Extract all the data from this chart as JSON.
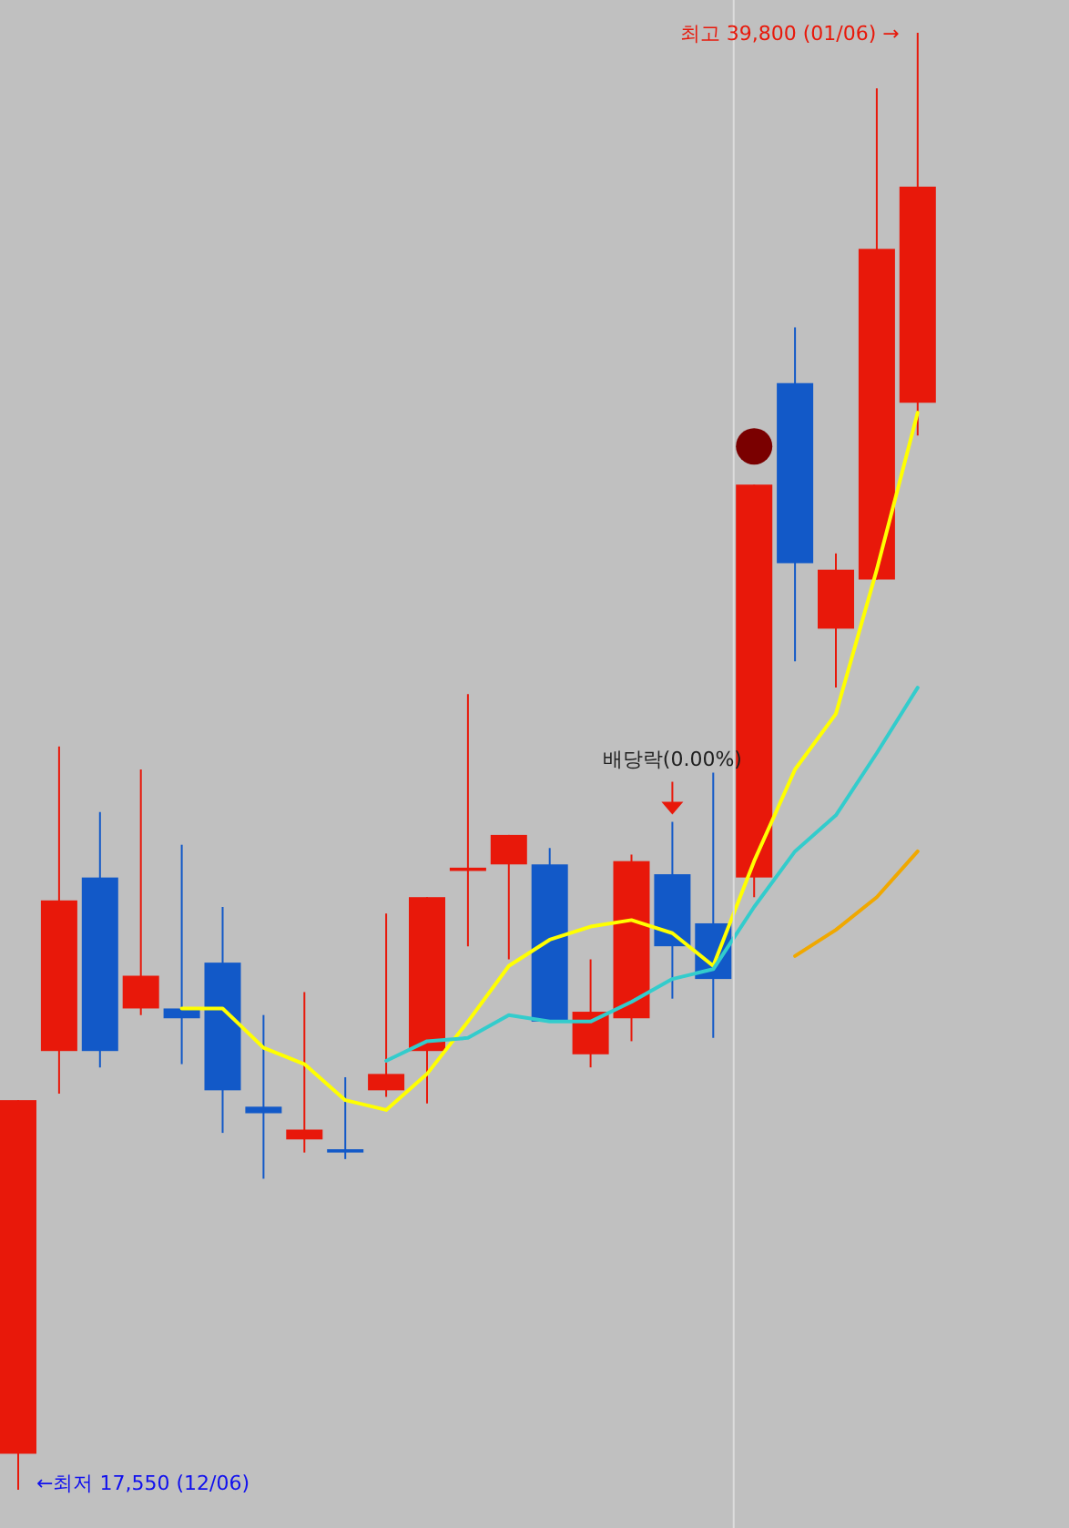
{
  "chart_data": {
    "type": "candlestick",
    "categories": [
      null,
      null,
      null,
      null,
      null,
      null,
      null,
      null,
      null,
      null,
      null,
      null,
      null,
      null,
      null,
      null,
      null,
      null,
      null,
      null,
      null,
      null,
      null
    ],
    "series": [
      {
        "colors": [
          "#e8180a",
          "#e8180a",
          "#1259c8",
          "#e8180a",
          "#1259c8",
          "#1259c8",
          "#1259c8",
          "#e8180a",
          "#1259c8",
          "#e8180a",
          "#e8180a",
          "#e8180a",
          "#e8180a",
          "#1259c8",
          "#e8180a",
          "#e8180a",
          "#1259c8",
          "#1259c8",
          "#e8180a",
          "#1259c8",
          "#e8180a",
          "#e8180a",
          "#e8180a"
        ],
        "ohlc": [
          [
            18100,
            23500,
            17550,
            23500
          ],
          [
            24250,
            28900,
            23600,
            26550
          ],
          [
            26900,
            27900,
            24000,
            24250
          ],
          [
            24900,
            28550,
            24800,
            25400
          ],
          [
            24900,
            27400,
            24050,
            24750
          ],
          [
            25600,
            26450,
            23000,
            23650
          ],
          [
            23400,
            24800,
            22300,
            23300
          ],
          [
            22900,
            25150,
            22700,
            23050
          ],
          [
            22750,
            23850,
            22600,
            22700
          ],
          [
            23650,
            26350,
            23550,
            23900
          ],
          [
            24250,
            26600,
            23450,
            26600
          ],
          [
            27000,
            29700,
            25850,
            27050
          ],
          [
            27100,
            27550,
            25650,
            27550
          ],
          [
            27100,
            27350,
            24700,
            24700
          ],
          [
            24200,
            25650,
            24000,
            24850
          ],
          [
            24750,
            27250,
            24400,
            27150
          ],
          [
            26950,
            27750,
            25050,
            25850
          ],
          [
            26200,
            28500,
            24450,
            25350
          ],
          [
            26900,
            32900,
            26600,
            32900
          ],
          [
            34450,
            35300,
            30200,
            31700
          ],
          [
            30700,
            31850,
            29800,
            31600
          ],
          [
            31450,
            38950,
            31450,
            36500
          ],
          [
            34150,
            39800,
            33650,
            37450
          ]
        ]
      },
      {
        "type": "line",
        "color": "#ffff00",
        "values": [
          null,
          null,
          null,
          null,
          24900,
          24900,
          24300,
          24050,
          23500,
          23350,
          23900,
          24700,
          25550,
          25950,
          26150,
          26250,
          26050,
          25550,
          27150,
          28550,
          29400,
          31600,
          34000
        ]
      },
      {
        "type": "line",
        "color": "#33cccc",
        "values": [
          null,
          null,
          null,
          null,
          null,
          null,
          null,
          null,
          null,
          24100,
          24400,
          24450,
          24800,
          24700,
          24700,
          25000,
          25350,
          25500,
          26450,
          27300,
          27850,
          28800,
          29800
        ]
      },
      {
        "type": "line",
        "color": "#f0a800",
        "values": [
          null,
          null,
          null,
          null,
          null,
          null,
          null,
          null,
          null,
          null,
          null,
          null,
          null,
          null,
          null,
          null,
          null,
          null,
          null,
          25700,
          26100,
          26600,
          27300
        ]
      }
    ],
    "annotations": [
      "최고 39,800 (01/06) →",
      "←최저 17,550 (12/06)",
      {
        "text": "배당락(0.00%)",
        "y": 27750
      }
    ]
  }
}
